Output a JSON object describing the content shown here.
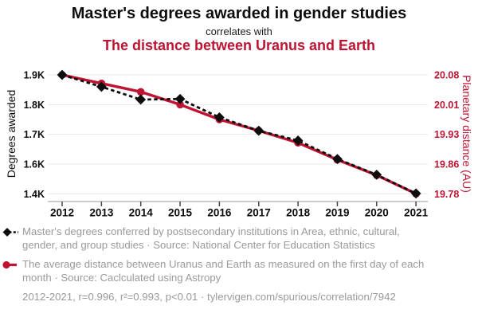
{
  "header": {
    "title": "Master's degrees awarded in gender studies",
    "subtitle": "correlates with",
    "secondary_title": "The distance between Uranus and Earth"
  },
  "chart_data": {
    "type": "line",
    "x": [
      2012,
      2013,
      2014,
      2015,
      2016,
      2017,
      2018,
      2019,
      2020,
      2021
    ],
    "series": [
      {
        "id": "degrees",
        "name": "Master's degrees awarded in gender studies",
        "axis": "left",
        "color": "#0d0d0d",
        "style": "dashed",
        "marker": "diamond",
        "z": 2,
        "values": [
          1900,
          1860,
          1817,
          1819,
          1757,
          1712,
          1679,
          1617,
          1528,
          1402
        ]
      },
      {
        "id": "distance",
        "name": "The average distance between Uranus and Earth (AU)",
        "axis": "right",
        "color": "#be1432",
        "style": "solid",
        "marker": "circle",
        "z": 1,
        "values": [
          20.08,
          20.06,
          20.04,
          20.01,
          19.97,
          19.94,
          19.91,
          19.87,
          19.83,
          19.78
        ]
      }
    ],
    "left_axis": {
      "label": "Degrees awarded",
      "tick_labels": [
        "1.9K",
        "1.8K",
        "1.7K",
        "1.6K",
        "1.4K"
      ],
      "tick_values": [
        1900,
        1800,
        1700,
        1600,
        1400
      ]
    },
    "right_axis": {
      "label": "Planetary distance (AU)",
      "tick_labels": [
        "20.08",
        "20.01",
        "19.93",
        "19.86",
        "19.78"
      ],
      "tick_values": [
        20.08,
        20.01,
        19.93,
        19.86,
        19.78
      ]
    },
    "grid": true,
    "legend_position": "bottom"
  },
  "legend": {
    "items": [
      {
        "series": "degrees",
        "text": "Master's degrees conferred by postsecondary institutions in Area, ethnic, cultural, gender, and group studies · Source: National Center for Education Statistics"
      },
      {
        "series": "distance",
        "text": "The average distance between Uranus and Earth as measured on the first day of each month · Source: Caclculated using Astropy"
      }
    ]
  },
  "footer": {
    "stats": "2012-2021, r=0.996, r²=0.993, p<0.01 · tylervigen.com/spurious/correlation/7942"
  },
  "colors": {
    "red": "#be1432",
    "black": "#0d0d0d",
    "legend_gray": "#9a9a9a",
    "gridline": "#e8e8e8",
    "axis_line": "#999999",
    "axis_tick": "#444444"
  }
}
